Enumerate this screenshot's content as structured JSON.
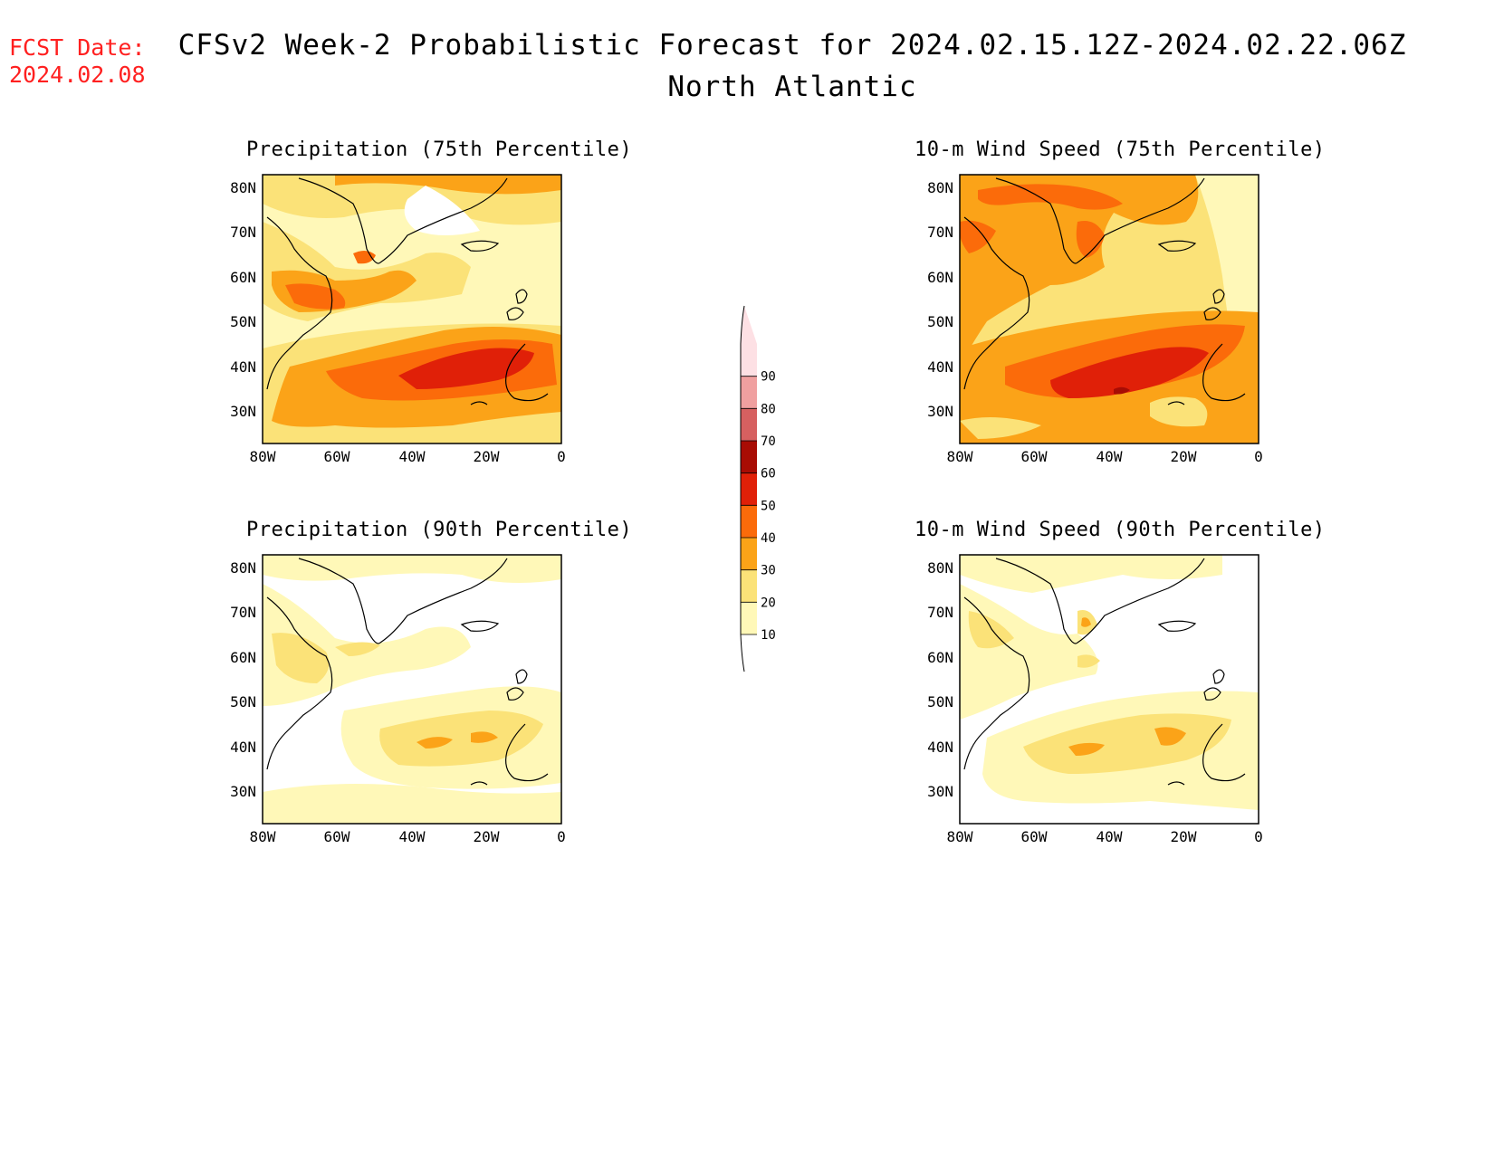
{
  "header": {
    "fcst_label": "FCST Date:",
    "fcst_date": "2024.02.08",
    "title": "CFSv2 Week-2 Probabilistic Forecast for 2024.02.15.12Z-2024.02.22.06Z",
    "region": "North Atlantic"
  },
  "panels": [
    {
      "title": "Precipitation (75th Percentile)"
    },
    {
      "title": "10-m Wind Speed (75th Percentile)"
    },
    {
      "title": "Precipitation (90th Percentile)"
    },
    {
      "title": "10-m Wind Speed (90th Percentile)"
    }
  ],
  "axes": {
    "lat_labels": [
      "80N",
      "70N",
      "60N",
      "50N",
      "40N",
      "30N"
    ],
    "lon_labels": [
      "80W",
      "60W",
      "40W",
      "20W",
      "0"
    ]
  },
  "colorbar": {
    "levels": [
      "10",
      "20",
      "30",
      "40",
      "50",
      "60",
      "70",
      "80",
      "90"
    ],
    "colors": [
      "#fff8b8",
      "#fbe278",
      "#fba318",
      "#fb6b0a",
      "#e02008",
      "#a80c04",
      "#d66060",
      "#f0a0a0",
      "#fde0e4"
    ]
  },
  "colors": {
    "c10": "#fff8b8",
    "c20": "#fbe278",
    "c30": "#fba318",
    "c40": "#fb6b0a",
    "c50": "#e02008",
    "c60": "#a80c04",
    "accent_red": "#ff2020"
  }
}
